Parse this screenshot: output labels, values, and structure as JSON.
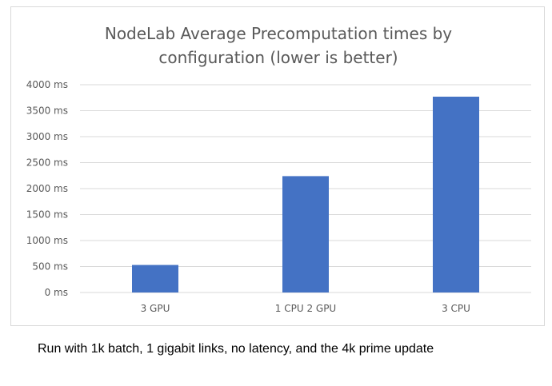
{
  "chart_data": {
    "type": "bar",
    "title_lines": [
      "NodeLab Average Precomputation times by",
      "configuration (lower is better)"
    ],
    "categories": [
      "3 GPU",
      "1 CPU 2 GPU",
      "3 CPU"
    ],
    "values": [
      530,
      2240,
      3770
    ],
    "y_unit": "ms",
    "ylim": [
      0,
      4000
    ],
    "y_ticks": [
      0,
      500,
      1000,
      1500,
      2000,
      2500,
      3000,
      3500,
      4000
    ],
    "y_tick_labels": [
      "0 ms",
      "500 ms",
      "1000 ms",
      "1500 ms",
      "2000 ms",
      "2500 ms",
      "3000 ms",
      "3500 ms",
      "4000 ms"
    ],
    "bar_color": "#4472c4",
    "grid": true,
    "grid_color": "#d9d9d9",
    "legend": "none"
  },
  "caption": "Run with 1k batch, 1 gigabit links, no latency, and the 4k prime update"
}
